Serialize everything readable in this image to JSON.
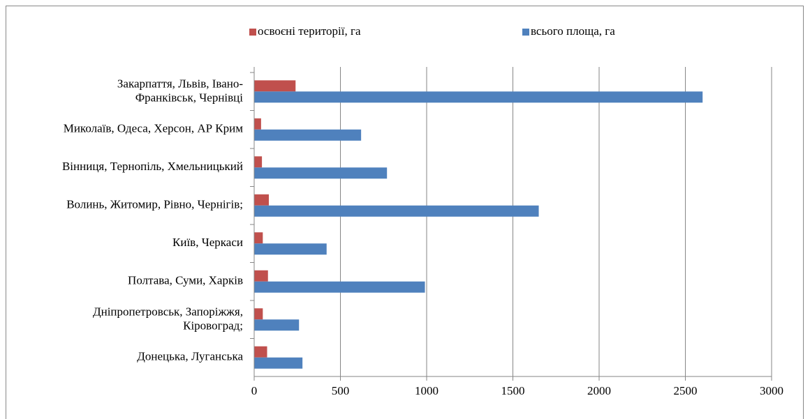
{
  "chart_data": {
    "type": "bar",
    "orientation": "horizontal",
    "categories": [
      "Закарпаття, Львів, Івано-\nФранківськ, Чернівці",
      "Миколаїв, Одеса, Херсон, АР Крим",
      "Вінниця, Тернопіль, Хмельницький",
      "Волинь, Житомир, Рівно, Чернігів;",
      "Київ, Черкаси",
      "Полтава, Суми, Харків",
      "Дніпропетровськ, Запоріжжя,\nКіровоград;",
      "Донецька, Луганська"
    ],
    "series": [
      {
        "name": "освоєні території, га",
        "color": "#c0504d",
        "values": [
          240,
          40,
          45,
          85,
          50,
          80,
          50,
          75
        ]
      },
      {
        "name": "всього площа, га",
        "color": "#4f81bd",
        "values": [
          2600,
          620,
          770,
          1650,
          420,
          990,
          260,
          280
        ]
      }
    ],
    "xlim": [
      0,
      3000
    ],
    "xticks": [
      0,
      500,
      1000,
      1500,
      2000,
      2500,
      3000
    ],
    "grid": true,
    "legend": "top"
  }
}
